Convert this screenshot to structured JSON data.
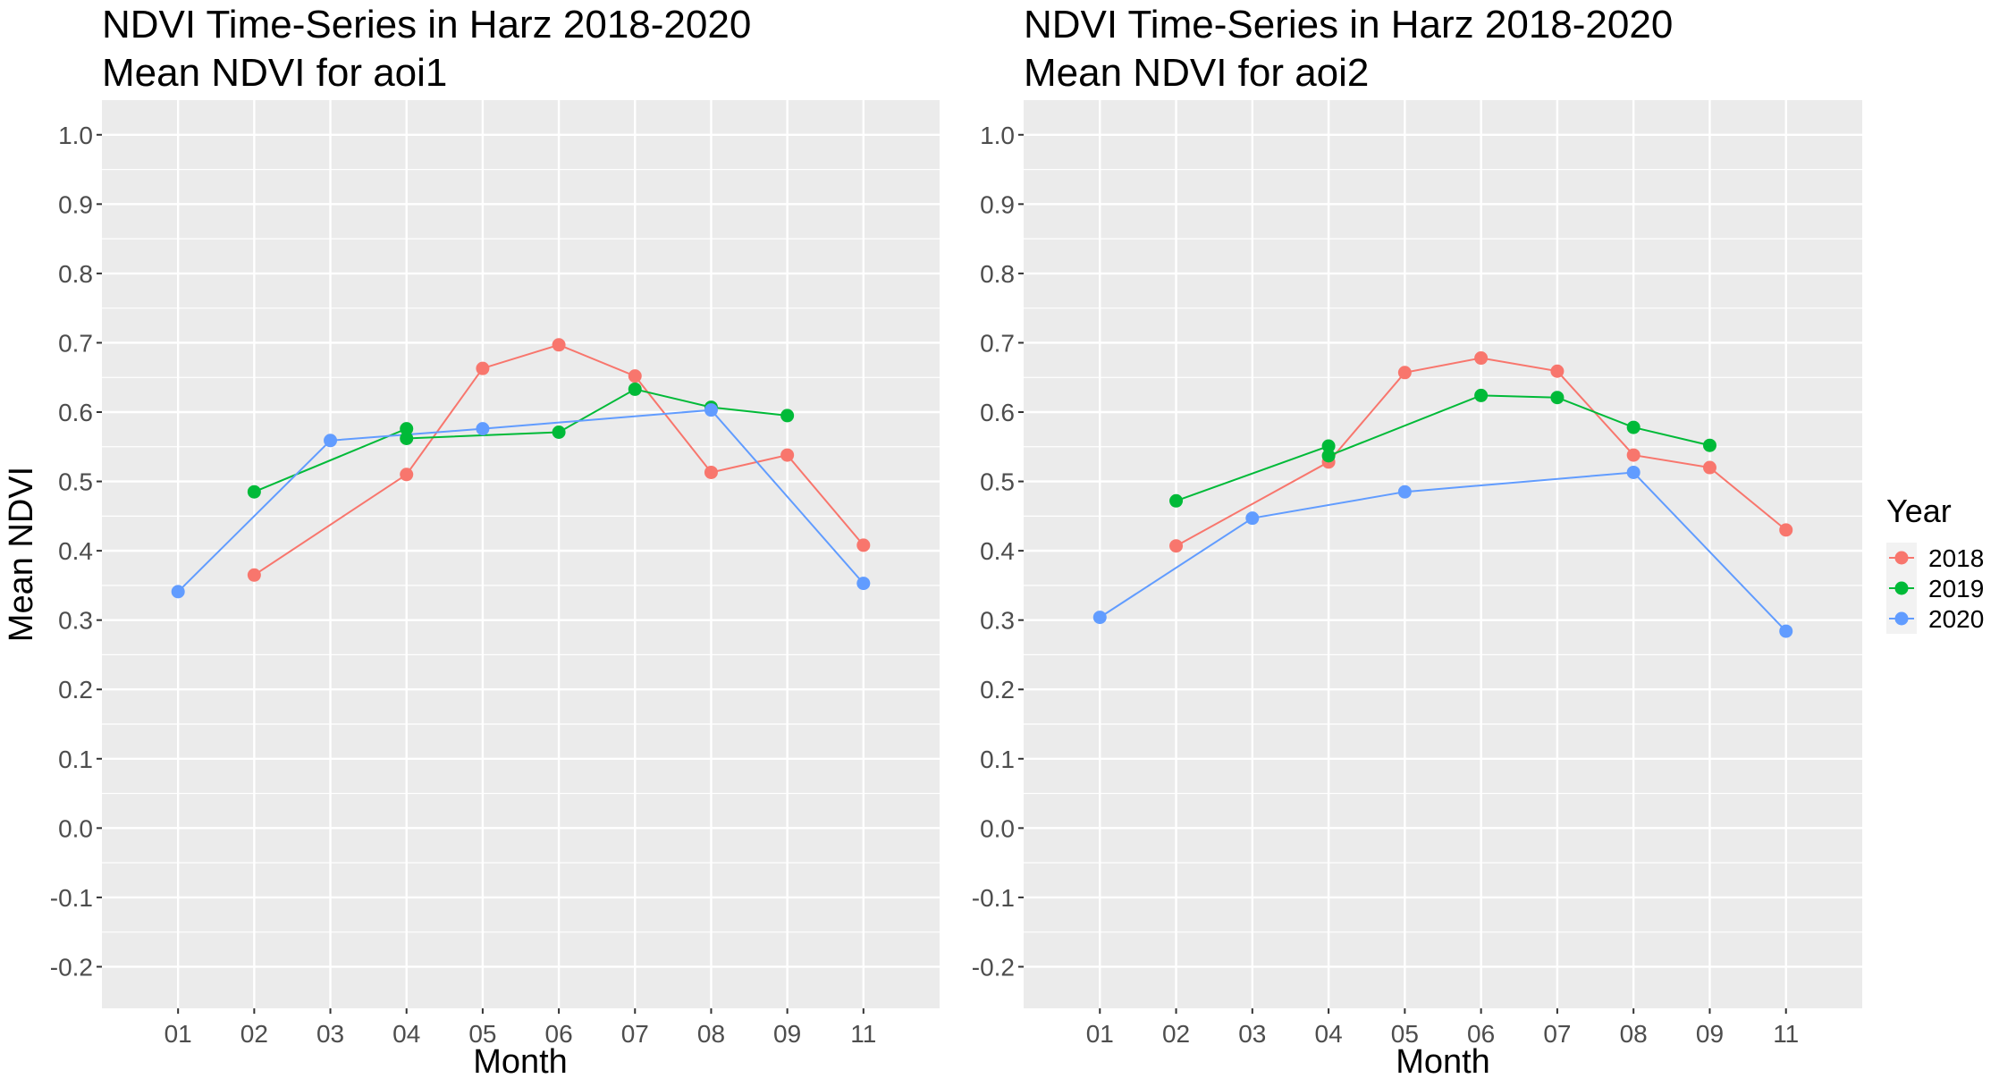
{
  "chart_data": [
    {
      "type": "line",
      "title": "NDVI Time-Series in Harz 2018-2020",
      "subtitle": "Mean NDVI for aoi1",
      "xlabel": "Month",
      "ylabel": "Mean NDVI",
      "categories": [
        "01",
        "02",
        "03",
        "04",
        "05",
        "06",
        "07",
        "08",
        "09",
        "11"
      ],
      "ylim": [
        -0.26,
        1.05
      ],
      "yticks": [
        "-0.2",
        "-0.1",
        "0.0",
        "0.1",
        "0.2",
        "0.3",
        "0.4",
        "0.5",
        "0.6",
        "0.7",
        "0.8",
        "0.9",
        "1.0"
      ],
      "grid": true,
      "series": [
        {
          "name": "2018",
          "color": "#F8766D",
          "points": [
            [
              "02",
              0.365
            ],
            [
              "04",
              0.51
            ],
            [
              "05",
              0.663
            ],
            [
              "06",
              0.697
            ],
            [
              "07",
              0.652
            ],
            [
              "08",
              0.513
            ],
            [
              "09",
              0.538
            ],
            [
              "11",
              0.408
            ]
          ]
        },
        {
          "name": "2019",
          "color": "#00BA38",
          "points": [
            [
              "02",
              0.485
            ],
            [
              "04",
              0.576
            ],
            [
              "04",
              0.562
            ],
            [
              "06",
              0.571
            ],
            [
              "07",
              0.633
            ],
            [
              "08",
              0.607
            ],
            [
              "09",
              0.595
            ]
          ]
        },
        {
          "name": "2020",
          "color": "#619CFF",
          "points": [
            [
              "01",
              0.341
            ],
            [
              "03",
              0.559
            ],
            [
              "05",
              0.576
            ],
            [
              "08",
              0.603
            ],
            [
              "11",
              0.353
            ]
          ]
        }
      ]
    },
    {
      "type": "line",
      "title": "NDVI Time-Series in Harz 2018-2020",
      "subtitle": "Mean NDVI for aoi2",
      "xlabel": "Month",
      "ylabel": "",
      "categories": [
        "01",
        "02",
        "03",
        "04",
        "05",
        "06",
        "07",
        "08",
        "09",
        "11"
      ],
      "ylim": [
        -0.26,
        1.05
      ],
      "yticks": [
        "-0.2",
        "-0.1",
        "0.0",
        "0.1",
        "0.2",
        "0.3",
        "0.4",
        "0.5",
        "0.6",
        "0.7",
        "0.8",
        "0.9",
        "1.0"
      ],
      "grid": true,
      "series": [
        {
          "name": "2018",
          "color": "#F8766D",
          "points": [
            [
              "02",
              0.407
            ],
            [
              "04",
              0.528
            ],
            [
              "05",
              0.657
            ],
            [
              "06",
              0.678
            ],
            [
              "07",
              0.659
            ],
            [
              "08",
              0.538
            ],
            [
              "09",
              0.52
            ],
            [
              "11",
              0.43
            ]
          ]
        },
        {
          "name": "2019",
          "color": "#00BA38",
          "points": [
            [
              "02",
              0.472
            ],
            [
              "04",
              0.551
            ],
            [
              "04",
              0.537
            ],
            [
              "06",
              0.624
            ],
            [
              "07",
              0.621
            ],
            [
              "08",
              0.578
            ],
            [
              "09",
              0.552
            ]
          ]
        },
        {
          "name": "2020",
          "color": "#619CFF",
          "points": [
            [
              "01",
              0.304
            ],
            [
              "03",
              0.447
            ],
            [
              "05",
              0.485
            ],
            [
              "08",
              0.513
            ],
            [
              "11",
              0.284
            ]
          ]
        }
      ]
    }
  ],
  "legend": {
    "title": "Year",
    "placement": "right",
    "items": [
      {
        "label": "2018",
        "color": "#F8766D"
      },
      {
        "label": "2019",
        "color": "#00BA38"
      },
      {
        "label": "2020",
        "color": "#619CFF"
      }
    ]
  }
}
